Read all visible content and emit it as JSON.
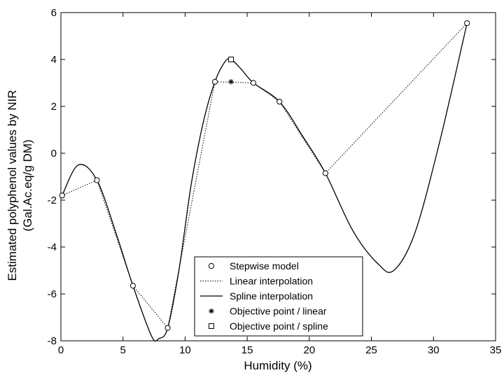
{
  "chart_data": {
    "type": "line",
    "title": "",
    "xlabel": "Humidity (%)",
    "ylabel_lines": [
      "Estimated polyphenol values by NIR",
      "(Gal.Ac.eq/g DM)"
    ],
    "xlim": [
      0,
      35
    ],
    "ylim": [
      -8,
      6
    ],
    "xticks": [
      0,
      5,
      10,
      15,
      20,
      25,
      30,
      35
    ],
    "yticks": [
      -8,
      -6,
      -4,
      -2,
      0,
      2,
      4,
      6
    ],
    "xtick_labels": [
      "0",
      "5",
      "10",
      "15",
      "20",
      "25",
      "30",
      "35"
    ],
    "ytick_labels": [
      "-8",
      "-6",
      "-4",
      "-2",
      "0",
      "2",
      "4",
      "6"
    ],
    "grid": false,
    "legend_position": "bottom-center",
    "series": [
      {
        "name": "Stepwise model",
        "marker": "circle",
        "line": "none",
        "x": [
          0.1,
          2.9,
          5.8,
          8.6,
          12.4,
          15.5,
          17.6,
          21.3,
          32.7
        ],
        "y": [
          -1.8,
          -1.15,
          -5.65,
          -7.45,
          3.05,
          3.0,
          2.2,
          -0.85,
          5.55
        ]
      },
      {
        "name": "Linear interpolation",
        "marker": "none",
        "line": "dotted",
        "x": [
          0.1,
          2.9,
          5.8,
          8.6,
          12.4,
          15.5,
          17.6,
          21.3,
          32.7
        ],
        "y": [
          -1.8,
          -1.15,
          -5.65,
          -7.45,
          3.05,
          3.0,
          2.2,
          -0.85,
          5.55
        ]
      },
      {
        "name": "Spline interpolation",
        "marker": "none",
        "line": "solid",
        "x": [
          0.1,
          1.4,
          2.9,
          4.5,
          5.8,
          7.3,
          7.9,
          8.6,
          9.5,
          10.5,
          11.5,
          12.4,
          13.2,
          13.7,
          14.5,
          15.5,
          17.6,
          19.5,
          21.3,
          23.5,
          25.5,
          26.8,
          28.5,
          30.5,
          32.7
        ],
        "y": [
          -1.8,
          -0.5,
          -1.15,
          -3.5,
          -5.65,
          -7.8,
          -7.9,
          -7.45,
          -5.0,
          -1.3,
          1.4,
          3.05,
          3.9,
          4.0,
          3.6,
          3.0,
          2.2,
          0.7,
          -0.85,
          -3.3,
          -4.7,
          -5.0,
          -3.4,
          0.5,
          5.55
        ]
      },
      {
        "name": "Objective point / linear",
        "marker": "asterisk",
        "line": "none",
        "x": [
          13.7
        ],
        "y": [
          3.05
        ]
      },
      {
        "name": "Objective point / spline",
        "marker": "square",
        "line": "none",
        "x": [
          13.7
        ],
        "y": [
          4.0
        ]
      }
    ]
  }
}
